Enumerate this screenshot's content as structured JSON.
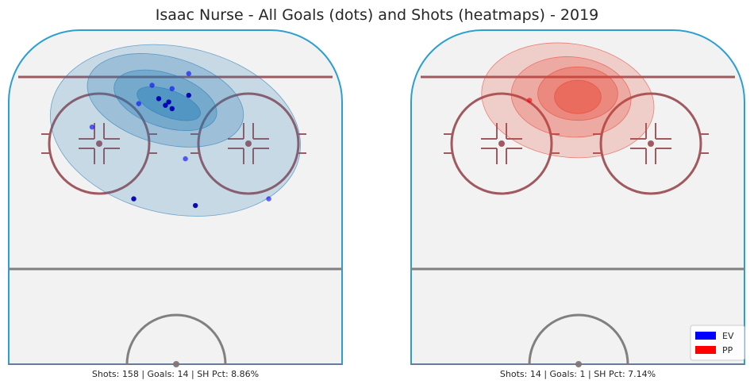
{
  "chart_data": {
    "type": "scatter",
    "title": "Isaac Nurse - All Goals (dots) and Shots (heatmaps) - 2019",
    "panels": [
      {
        "strength": "EV",
        "caption": "Shots: 158 | Goals: 14 | SH Pct: 8.86%",
        "stats": {
          "shots": 158,
          "goals": 14,
          "sh_pct": 8.86
        },
        "color": "#0000ff",
        "heat_color": "#1f77b4",
        "goals": [
          {
            "x": 0.54,
            "y": 0.13,
            "dark": false
          },
          {
            "x": 0.43,
            "y": 0.165,
            "dark": false
          },
          {
            "x": 0.49,
            "y": 0.175,
            "dark": false
          },
          {
            "x": 0.54,
            "y": 0.195,
            "dark": true
          },
          {
            "x": 0.45,
            "y": 0.205,
            "dark": true
          },
          {
            "x": 0.48,
            "y": 0.215,
            "dark": true
          },
          {
            "x": 0.47,
            "y": 0.225,
            "dark": true
          },
          {
            "x": 0.39,
            "y": 0.22,
            "dark": false
          },
          {
            "x": 0.49,
            "y": 0.235,
            "dark": true
          },
          {
            "x": 0.25,
            "y": 0.29,
            "dark": false
          },
          {
            "x": 0.53,
            "y": 0.385,
            "dark": false
          },
          {
            "x": 0.375,
            "y": 0.505,
            "dark": true
          },
          {
            "x": 0.56,
            "y": 0.525,
            "dark": true
          },
          {
            "x": 0.78,
            "y": 0.505,
            "dark": false
          }
        ],
        "heat_levels": [
          {
            "cx": 0.48,
            "cy": 0.22,
            "rx": 0.1,
            "ry": 0.04,
            "rot": 20
          },
          {
            "cx": 0.47,
            "cy": 0.21,
            "rx": 0.16,
            "ry": 0.08,
            "rot": 18
          },
          {
            "cx": 0.47,
            "cy": 0.21,
            "rx": 0.24,
            "ry": 0.13,
            "rot": 15
          },
          {
            "cx": 0.5,
            "cy": 0.3,
            "rx": 0.38,
            "ry": 0.25,
            "rot": 12
          }
        ]
      },
      {
        "strength": "PP",
        "caption": "Shots: 14 | Goals: 1 | SH Pct: 7.14%",
        "stats": {
          "shots": 14,
          "goals": 1,
          "sh_pct": 7.14
        },
        "color": "#ff0000",
        "heat_color": "#e8402e",
        "goals": [
          {
            "x": 0.355,
            "y": 0.21,
            "dark": false
          }
        ],
        "heat_levels": [
          {
            "cx": 0.5,
            "cy": 0.2,
            "rx": 0.07,
            "ry": 0.05,
            "rot": 0
          },
          {
            "cx": 0.5,
            "cy": 0.19,
            "rx": 0.12,
            "ry": 0.08,
            "rot": 0
          },
          {
            "cx": 0.48,
            "cy": 0.2,
            "rx": 0.18,
            "ry": 0.12,
            "rot": 5
          },
          {
            "cx": 0.47,
            "cy": 0.21,
            "rx": 0.26,
            "ry": 0.17,
            "rot": 8
          }
        ]
      }
    ],
    "legend": {
      "placement": "bottom-right",
      "entries": [
        {
          "label": "EV",
          "color": "#0000ff"
        },
        {
          "label": "PP",
          "color": "#ff0000"
        }
      ]
    },
    "grid": false
  }
}
